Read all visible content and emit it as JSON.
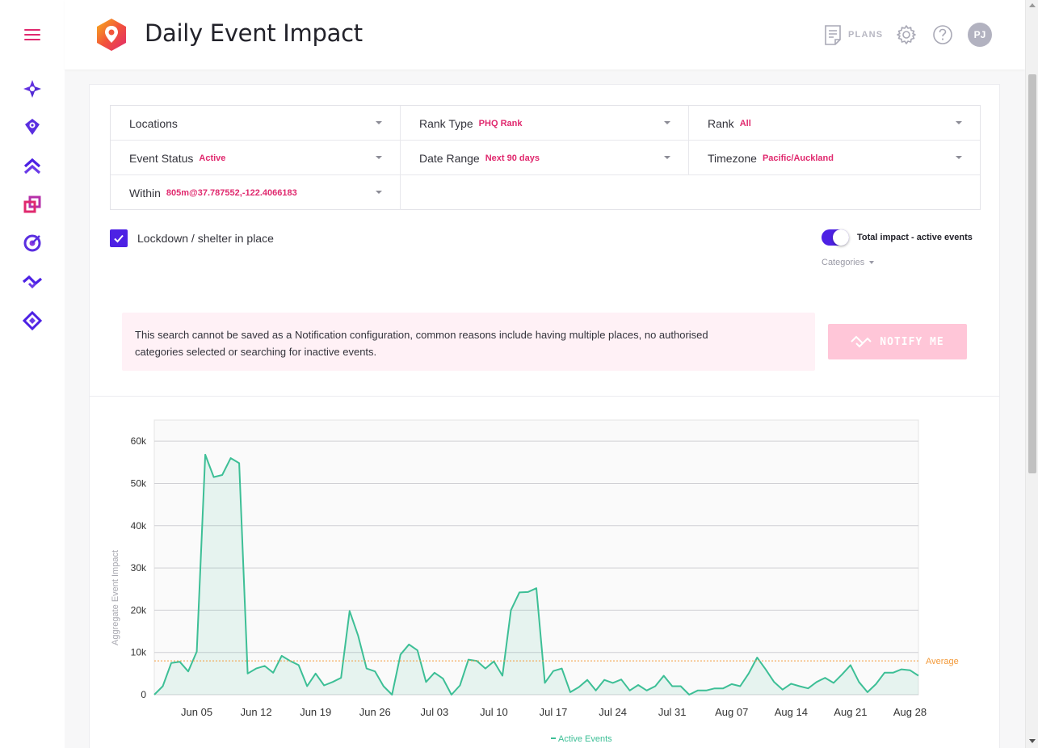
{
  "header": {
    "title": "Daily Event Impact",
    "plans_label": "PLANS",
    "avatar_initials": "PJ"
  },
  "nav": {
    "items": [
      "menu-icon",
      "sparkle-icon",
      "location-pin-icon",
      "chevrons-up-icon",
      "layers-icon",
      "target-icon",
      "trend-icon",
      "diamond-icon"
    ]
  },
  "filters": {
    "locations": {
      "label": "Locations",
      "value": ""
    },
    "rank_type": {
      "label": "Rank Type",
      "value": "PHQ Rank"
    },
    "rank": {
      "label": "Rank",
      "value": "All"
    },
    "event_status": {
      "label": "Event Status",
      "value": "Active"
    },
    "date_range": {
      "label": "Date Range",
      "value": "Next 90 days"
    },
    "timezone": {
      "label": "Timezone",
      "value": "Pacific/Auckland"
    },
    "within": {
      "label": "Within",
      "value": "805m@37.787552,-122.4066183"
    }
  },
  "lockdown": {
    "label": "Lockdown / shelter in place",
    "checked": true
  },
  "toggle": {
    "label": "Total impact - active events",
    "on": true
  },
  "categories_label": "Categories",
  "notice": {
    "line1": "This search cannot be saved as a Notification configuration, common reasons include having multiple places, no authorised",
    "line2": "categories selected or searching for inactive events."
  },
  "notify_button": {
    "label": "NOTIFY ME",
    "disabled": true
  },
  "colors": {
    "accent": "#e0296e",
    "primary": "#4d21e4",
    "series": "#3dbf96",
    "average": "#f39a3a"
  },
  "chart_data": {
    "type": "area",
    "ylabel": "Aggregate Event Impact",
    "ylim": [
      0,
      65000
    ],
    "yticks": [
      0,
      10000,
      20000,
      30000,
      40000,
      50000,
      60000
    ],
    "ytick_labels": [
      "0",
      "10k",
      "20k",
      "30k",
      "40k",
      "50k",
      "60k"
    ],
    "xticks": [
      "Jun 05",
      "Jun 12",
      "Jun 19",
      "Jun 26",
      "Jul 03",
      "Jul 10",
      "Jul 17",
      "Jul 24",
      "Jul 31",
      "Aug 07",
      "Aug 14",
      "Aug 21",
      "Aug 28"
    ],
    "xtick_day_index": [
      5,
      12,
      19,
      26,
      33,
      40,
      47,
      54,
      61,
      68,
      75,
      82,
      89
    ],
    "grid": true,
    "legend": "bottom",
    "average": {
      "label": "Average",
      "value": 8000
    },
    "series": [
      {
        "name": "Active Events",
        "values": [
          0,
          2000,
          7500,
          7800,
          5500,
          10200,
          56800,
          51500,
          52000,
          56000,
          54800,
          5000,
          6200,
          6800,
          5200,
          9200,
          8000,
          7000,
          2000,
          5000,
          2200,
          3000,
          4000,
          19800,
          14000,
          6200,
          5500,
          2000,
          0,
          9500,
          11900,
          10500,
          3000,
          5200,
          3800,
          0,
          2200,
          8300,
          8000,
          6200,
          7900,
          4500,
          20000,
          24200,
          24300,
          25200,
          2800,
          5600,
          6200,
          600,
          1800,
          3500,
          1000,
          3500,
          2800,
          3600,
          1000,
          2300,
          1000,
          2000,
          4500,
          2000,
          2000,
          0,
          1000,
          1000,
          1500,
          1500,
          2500,
          2000,
          5000,
          8800,
          6000,
          3000,
          1200,
          2600,
          2000,
          1500,
          3000,
          4000,
          2800,
          4800,
          7000,
          3000,
          600,
          2500,
          5200,
          5200,
          6000,
          5800,
          4500
        ]
      }
    ]
  }
}
